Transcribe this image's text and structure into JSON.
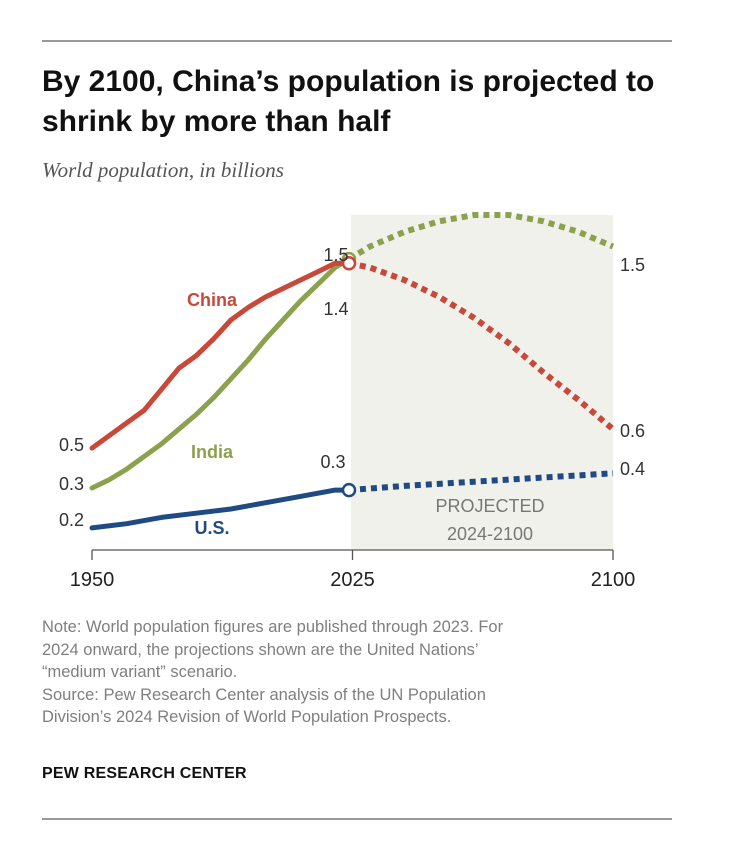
{
  "title": "By 2100, China’s population is projected to shrink by more than half",
  "subtitle": "World population, in billions",
  "projected_label": "PROJECTED",
  "projected_range": "2024-2100",
  "note": {
    "line1": "Note: World population figures are published through 2023. For",
    "line2": "2024 onward, the projections shown are the United Nations’",
    "line3": "“medium variant” scenario.",
    "line4": "Source: Pew Research Center analysis of the UN Population",
    "line5": "Division’s 2024 Revision of World Population Prospects."
  },
  "brand": "PEW RESEARCH CENTER",
  "chart_data": {
    "type": "line",
    "xticks": [
      1950,
      2025,
      2100
    ],
    "xlim": [
      1950,
      2100
    ],
    "ylim": [
      0.15,
      1.65
    ],
    "projection_start": 2024,
    "grid": false,
    "legend": "inline labels",
    "series": [
      {
        "name": "China",
        "color": "#c8483a",
        "label": "China",
        "start_label": "0.5",
        "mid_label": "1.4",
        "end_label": "0.6",
        "historical": [
          [
            1950,
            0.54
          ],
          [
            1955,
            0.6
          ],
          [
            1960,
            0.66
          ],
          [
            1965,
            0.72
          ],
          [
            1970,
            0.82
          ],
          [
            1975,
            0.92
          ],
          [
            1980,
            0.98
          ],
          [
            1985,
            1.06
          ],
          [
            1990,
            1.15
          ],
          [
            1995,
            1.21
          ],
          [
            2000,
            1.26
          ],
          [
            2005,
            1.3
          ],
          [
            2010,
            1.34
          ],
          [
            2015,
            1.38
          ],
          [
            2020,
            1.42
          ],
          [
            2023,
            1.42
          ]
        ],
        "projected": [
          [
            2024,
            1.42
          ],
          [
            2030,
            1.4
          ],
          [
            2040,
            1.34
          ],
          [
            2050,
            1.26
          ],
          [
            2060,
            1.16
          ],
          [
            2070,
            1.04
          ],
          [
            2080,
            0.9
          ],
          [
            2090,
            0.77
          ],
          [
            2100,
            0.63
          ]
        ]
      },
      {
        "name": "India",
        "color": "#8ca14d",
        "label": "India",
        "start_label": "0.3",
        "mid_label": "1.5",
        "end_label": "1.5",
        "historical": [
          [
            1950,
            0.35
          ],
          [
            1955,
            0.39
          ],
          [
            1960,
            0.44
          ],
          [
            1965,
            0.5
          ],
          [
            1970,
            0.56
          ],
          [
            1975,
            0.63
          ],
          [
            1980,
            0.7
          ],
          [
            1985,
            0.78
          ],
          [
            1990,
            0.87
          ],
          [
            1995,
            0.96
          ],
          [
            2000,
            1.06
          ],
          [
            2005,
            1.15
          ],
          [
            2010,
            1.24
          ],
          [
            2015,
            1.32
          ],
          [
            2020,
            1.4
          ],
          [
            2023,
            1.43
          ]
        ],
        "projected": [
          [
            2024,
            1.44
          ],
          [
            2030,
            1.5
          ],
          [
            2040,
            1.57
          ],
          [
            2050,
            1.62
          ],
          [
            2060,
            1.65
          ],
          [
            2070,
            1.65
          ],
          [
            2080,
            1.62
          ],
          [
            2090,
            1.57
          ],
          [
            2100,
            1.5
          ]
        ]
      },
      {
        "name": "U.S.",
        "color": "#1f4a83",
        "label": "U.S.",
        "start_label": "0.2",
        "mid_label": "0.3",
        "end_label": "0.4",
        "historical": [
          [
            1950,
            0.16
          ],
          [
            1960,
            0.18
          ],
          [
            1970,
            0.21
          ],
          [
            1980,
            0.23
          ],
          [
            1990,
            0.25
          ],
          [
            2000,
            0.28
          ],
          [
            2010,
            0.31
          ],
          [
            2020,
            0.34
          ],
          [
            2023,
            0.34
          ]
        ],
        "projected": [
          [
            2024,
            0.34
          ],
          [
            2040,
            0.36
          ],
          [
            2060,
            0.38
          ],
          [
            2080,
            0.4
          ],
          [
            2100,
            0.42
          ]
        ]
      }
    ]
  }
}
